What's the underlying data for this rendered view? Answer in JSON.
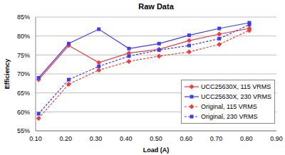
{
  "chart_data": {
    "type": "line",
    "title": "Raw Data",
    "x_label": "Load (A)",
    "y_label": "Efficiency",
    "x": [
      0.11,
      0.21,
      0.31,
      0.41,
      0.51,
      0.61,
      0.71,
      0.81
    ],
    "series": [
      {
        "name": "UCC25630X, 115 VRMS",
        "color": "#f03c3c",
        "line_style": "solid",
        "marker": "diamond",
        "values": [
          68.5,
          77.5,
          73,
          75.5,
          76.5,
          78.8,
          80.5,
          82
        ]
      },
      {
        "name": "UCC25630X, 230 VRMS",
        "color": "#3c3cf0",
        "line_style": "solid",
        "marker": "square",
        "values": [
          69,
          78,
          81.8,
          76.7,
          78,
          80.2,
          82,
          83.5
        ]
      },
      {
        "name": "Original, 115 VRMS",
        "color": "#f03c3c",
        "line_style": "dashed",
        "marker": "diamond",
        "values": [
          58.3,
          67.3,
          71,
          73.3,
          74.7,
          75.8,
          77.8,
          81.5
        ]
      },
      {
        "name": "Original, 230 VRMS",
        "color": "#3c3cf0",
        "line_style": "dashed",
        "marker": "square",
        "values": [
          59.5,
          68.5,
          72,
          74.7,
          76.3,
          77.5,
          79.3,
          83
        ]
      }
    ],
    "xlim": [
      0.1,
      0.9
    ],
    "xticks": [
      {
        "value": 0.1,
        "label": "0.10"
      },
      {
        "value": 0.2,
        "label": "0.20"
      },
      {
        "value": 0.3,
        "label": "0.30"
      },
      {
        "value": 0.4,
        "label": "0.40"
      },
      {
        "value": 0.5,
        "label": "0.50"
      },
      {
        "value": 0.6,
        "label": "0.60"
      },
      {
        "value": 0.7,
        "label": "0.70"
      },
      {
        "value": 0.8,
        "label": "0.80"
      },
      {
        "value": 0.9,
        "label": "0.90"
      }
    ],
    "ylim": [
      55,
      85
    ],
    "yticks": [
      {
        "value": 55,
        "label": "55%"
      },
      {
        "value": 60,
        "label": "60%"
      },
      {
        "value": 65,
        "label": "65%"
      },
      {
        "value": 70,
        "label": "70%"
      },
      {
        "value": 75,
        "label": "75%"
      },
      {
        "value": 80,
        "label": "80%"
      },
      {
        "value": 85,
        "label": "85%"
      }
    ],
    "grid": true,
    "legend": "lower right"
  }
}
